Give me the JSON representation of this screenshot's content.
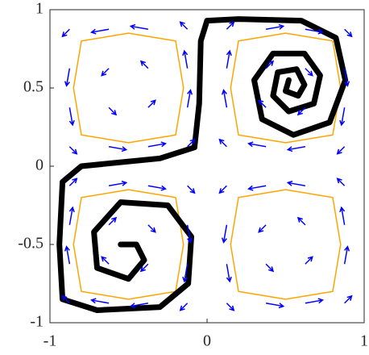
{
  "chart_data": {
    "type": "quiver",
    "xlim": [
      -1,
      1
    ],
    "ylim": [
      -1,
      1
    ],
    "xticks": [
      -1,
      0,
      1
    ],
    "yticks": [
      -1,
      -0.5,
      0,
      0.5,
      1
    ],
    "field": {
      "color": "#0000ff",
      "x": [
        -0.875,
        -0.625,
        -0.375,
        -0.125,
        0.125,
        0.375,
        0.625,
        0.875
      ],
      "y": [
        -0.875,
        -0.625,
        -0.375,
        -0.125,
        0.125,
        0.375,
        0.625,
        0.875
      ],
      "u": [
        [
          -0.35,
          -0.85,
          -0.85,
          -0.35,
          0.35,
          0.85,
          0.85,
          0.35
        ],
        [
          -0.15,
          -0.35,
          -0.35,
          -0.15,
          0.15,
          0.35,
          0.35,
          0.15
        ],
        [
          0.15,
          0.35,
          0.35,
          0.15,
          -0.15,
          -0.35,
          -0.35,
          -0.15
        ],
        [
          0.35,
          0.85,
          0.85,
          0.35,
          -0.35,
          -0.85,
          -0.85,
          -0.35
        ],
        [
          0.35,
          0.85,
          0.85,
          0.35,
          -0.35,
          -0.85,
          -0.85,
          -0.35
        ],
        [
          0.15,
          0.35,
          0.35,
          0.15,
          -0.15,
          -0.35,
          -0.35,
          -0.15
        ],
        [
          -0.15,
          -0.35,
          -0.35,
          -0.15,
          0.15,
          0.35,
          0.35,
          0.15
        ],
        [
          -0.35,
          -0.85,
          -0.85,
          -0.35,
          0.35,
          0.85,
          0.85,
          0.35
        ]
      ],
      "v": [
        [
          0.35,
          0.15,
          -0.15,
          -0.35,
          -0.35,
          -0.15,
          0.15,
          0.35
        ],
        [
          0.85,
          0.35,
          -0.35,
          -0.85,
          -0.85,
          -0.35,
          0.35,
          0.85
        ],
        [
          0.85,
          0.35,
          -0.35,
          -0.85,
          -0.85,
          -0.35,
          0.35,
          0.85
        ],
        [
          0.35,
          0.15,
          -0.15,
          -0.35,
          -0.35,
          -0.15,
          0.15,
          0.35
        ],
        [
          -0.35,
          -0.15,
          0.15,
          0.35,
          0.35,
          0.15,
          -0.15,
          -0.35
        ],
        [
          -0.85,
          -0.35,
          0.35,
          0.85,
          0.85,
          0.35,
          -0.35,
          -0.85
        ],
        [
          -0.85,
          -0.35,
          0.35,
          0.85,
          0.85,
          0.35,
          -0.35,
          -0.85
        ],
        [
          -0.35,
          -0.15,
          0.15,
          0.35,
          0.35,
          0.15,
          -0.15,
          -0.35
        ]
      ]
    },
    "series": [
      {
        "color": "#ffa500",
        "width": 1.5,
        "x": [
          0.85,
          0.8,
          0.5,
          0.2,
          0.15,
          0.2,
          0.5,
          0.8,
          0.85,
          null,
          -0.15,
          -0.2,
          -0.5,
          -0.8,
          -0.85,
          -0.8,
          -0.5,
          -0.2,
          -0.15,
          null,
          -0.15,
          -0.2,
          -0.5,
          -0.8,
          -0.85,
          -0.8,
          -0.5,
          -0.2,
          -0.15,
          null,
          0.85,
          0.8,
          0.5,
          0.2,
          0.15,
          0.2,
          0.5,
          0.8,
          0.85
        ],
        "y": [
          0.5,
          0.8,
          0.85,
          0.8,
          0.5,
          0.2,
          0.15,
          0.2,
          0.5,
          null,
          0.5,
          0.8,
          0.85,
          0.8,
          0.5,
          0.2,
          0.15,
          0.2,
          0.5,
          null,
          -0.5,
          -0.2,
          -0.15,
          -0.2,
          -0.5,
          -0.8,
          -0.85,
          -0.8,
          -0.5,
          null,
          -0.5,
          -0.2,
          -0.15,
          -0.2,
          -0.5,
          -0.8,
          -0.85,
          -0.8,
          -0.5
        ]
      },
      {
        "color": "#000000",
        "width": 7,
        "x": [
          0.52,
          0.5,
          0.58,
          0.62,
          0.57,
          0.45,
          0.42,
          0.52,
          0.68,
          0.72,
          0.62,
          0.42,
          0.3,
          0.35,
          0.55,
          0.78,
          0.88,
          0.82,
          0.6,
          0.2,
          0.0,
          -0.04,
          -0.05,
          -0.08,
          -0.3,
          -0.8,
          -0.92,
          -0.94,
          -0.92,
          -0.7,
          -0.3,
          -0.12,
          -0.1,
          -0.25,
          -0.55,
          -0.72,
          -0.7,
          -0.5,
          -0.4,
          -0.45,
          -0.55
        ],
        "y": [
          0.55,
          0.48,
          0.45,
          0.52,
          0.62,
          0.6,
          0.45,
          0.35,
          0.4,
          0.58,
          0.72,
          0.72,
          0.55,
          0.3,
          0.2,
          0.28,
          0.55,
          0.82,
          0.93,
          0.94,
          0.93,
          0.8,
          0.4,
          0.12,
          0.05,
          0.0,
          -0.1,
          -0.5,
          -0.85,
          -0.92,
          -0.9,
          -0.75,
          -0.45,
          -0.25,
          -0.23,
          -0.42,
          -0.65,
          -0.72,
          -0.6,
          -0.5,
          -0.5
        ]
      }
    ]
  }
}
